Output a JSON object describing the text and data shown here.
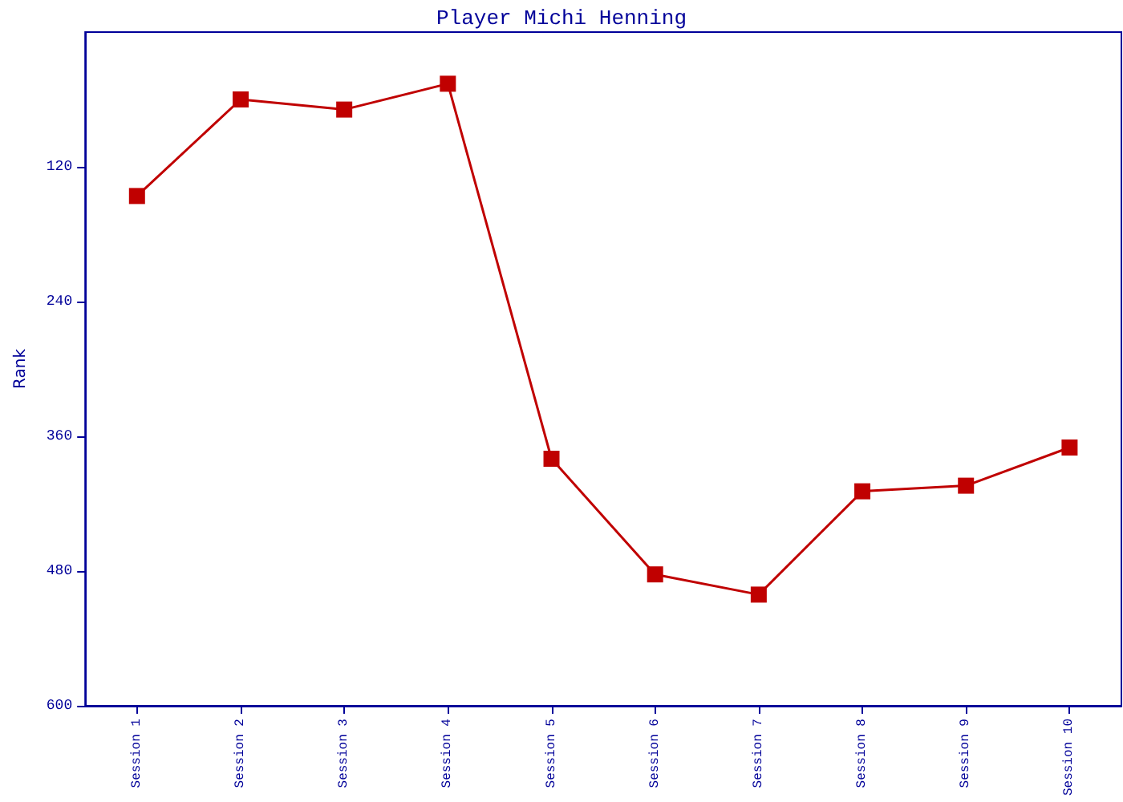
{
  "chart_data": {
    "type": "line",
    "title": "Player Michi Henning",
    "ylabel": "Rank",
    "categories": [
      "Session 1",
      "Session 2",
      "Session 3",
      "Session 4",
      "Session 5",
      "Session 6",
      "Session 7",
      "Session 8",
      "Session 9",
      "Session 10"
    ],
    "series": [
      {
        "color": "#c00000",
        "values": [
          146,
          60,
          69,
          46,
          380,
          483,
          501,
          409,
          404,
          370
        ]
      }
    ],
    "ylim": [
      600,
      0
    ],
    "yticks": [
      120,
      240,
      360,
      480,
      600
    ],
    "grid": false,
    "marker": "square",
    "line_style": "solid"
  }
}
